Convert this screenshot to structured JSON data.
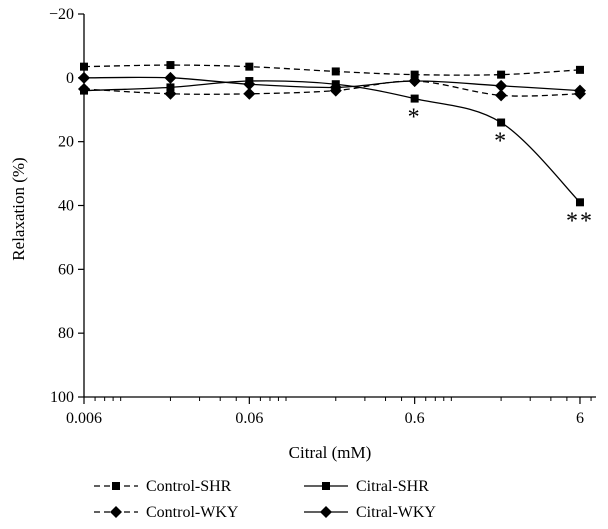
{
  "chart_data": {
    "type": "line",
    "xlabel": "Citral (mM)",
    "ylabel": "Relaxation (%)",
    "x_scale": "log",
    "x_ticks": [
      {
        "value": 0.006,
        "label": "0.006"
      },
      {
        "value": 0.06,
        "label": "0.06"
      },
      {
        "value": 0.6,
        "label": "0.6"
      },
      {
        "value": 6,
        "label": "6"
      }
    ],
    "xlim": [
      0.006,
      7.5
    ],
    "y_inverted": true,
    "ylim": [
      -20,
      100
    ],
    "y_ticks": [
      {
        "value": -20,
        "label": "−20"
      },
      {
        "value": 0,
        "label": "0"
      },
      {
        "value": 20,
        "label": "20"
      },
      {
        "value": 40,
        "label": "40"
      },
      {
        "value": 60,
        "label": "60"
      },
      {
        "value": 80,
        "label": "80"
      },
      {
        "value": 100,
        "label": "100"
      }
    ],
    "x": [
      0.006,
      0.02,
      0.06,
      0.2,
      0.6,
      2,
      6
    ],
    "series": [
      {
        "name": "Control-SHR",
        "marker": "square",
        "dash": true,
        "values": [
          -3.5,
          -4,
          -3.5,
          -2,
          -1,
          -1,
          -2.5
        ]
      },
      {
        "name": "Citral-SHR",
        "marker": "square",
        "dash": false,
        "values": [
          4,
          3,
          1,
          2,
          6.5,
          14,
          39
        ]
      },
      {
        "name": "Control-WKY",
        "marker": "diamond",
        "dash": true,
        "values": [
          3.5,
          5,
          5,
          4,
          1,
          5.5,
          5
        ]
      },
      {
        "name": "Citral-WKY",
        "marker": "diamond",
        "dash": false,
        "values": [
          0,
          0,
          2,
          3,
          1,
          2.5,
          4
        ]
      }
    ],
    "annotations": [
      {
        "text": "*",
        "x": 0.6,
        "y": 11.5
      },
      {
        "text": "*",
        "x": 2,
        "y": 19
      },
      {
        "text": "**",
        "x": 6,
        "y": 44
      }
    ],
    "legend_position": "bottom",
    "grid": false
  }
}
